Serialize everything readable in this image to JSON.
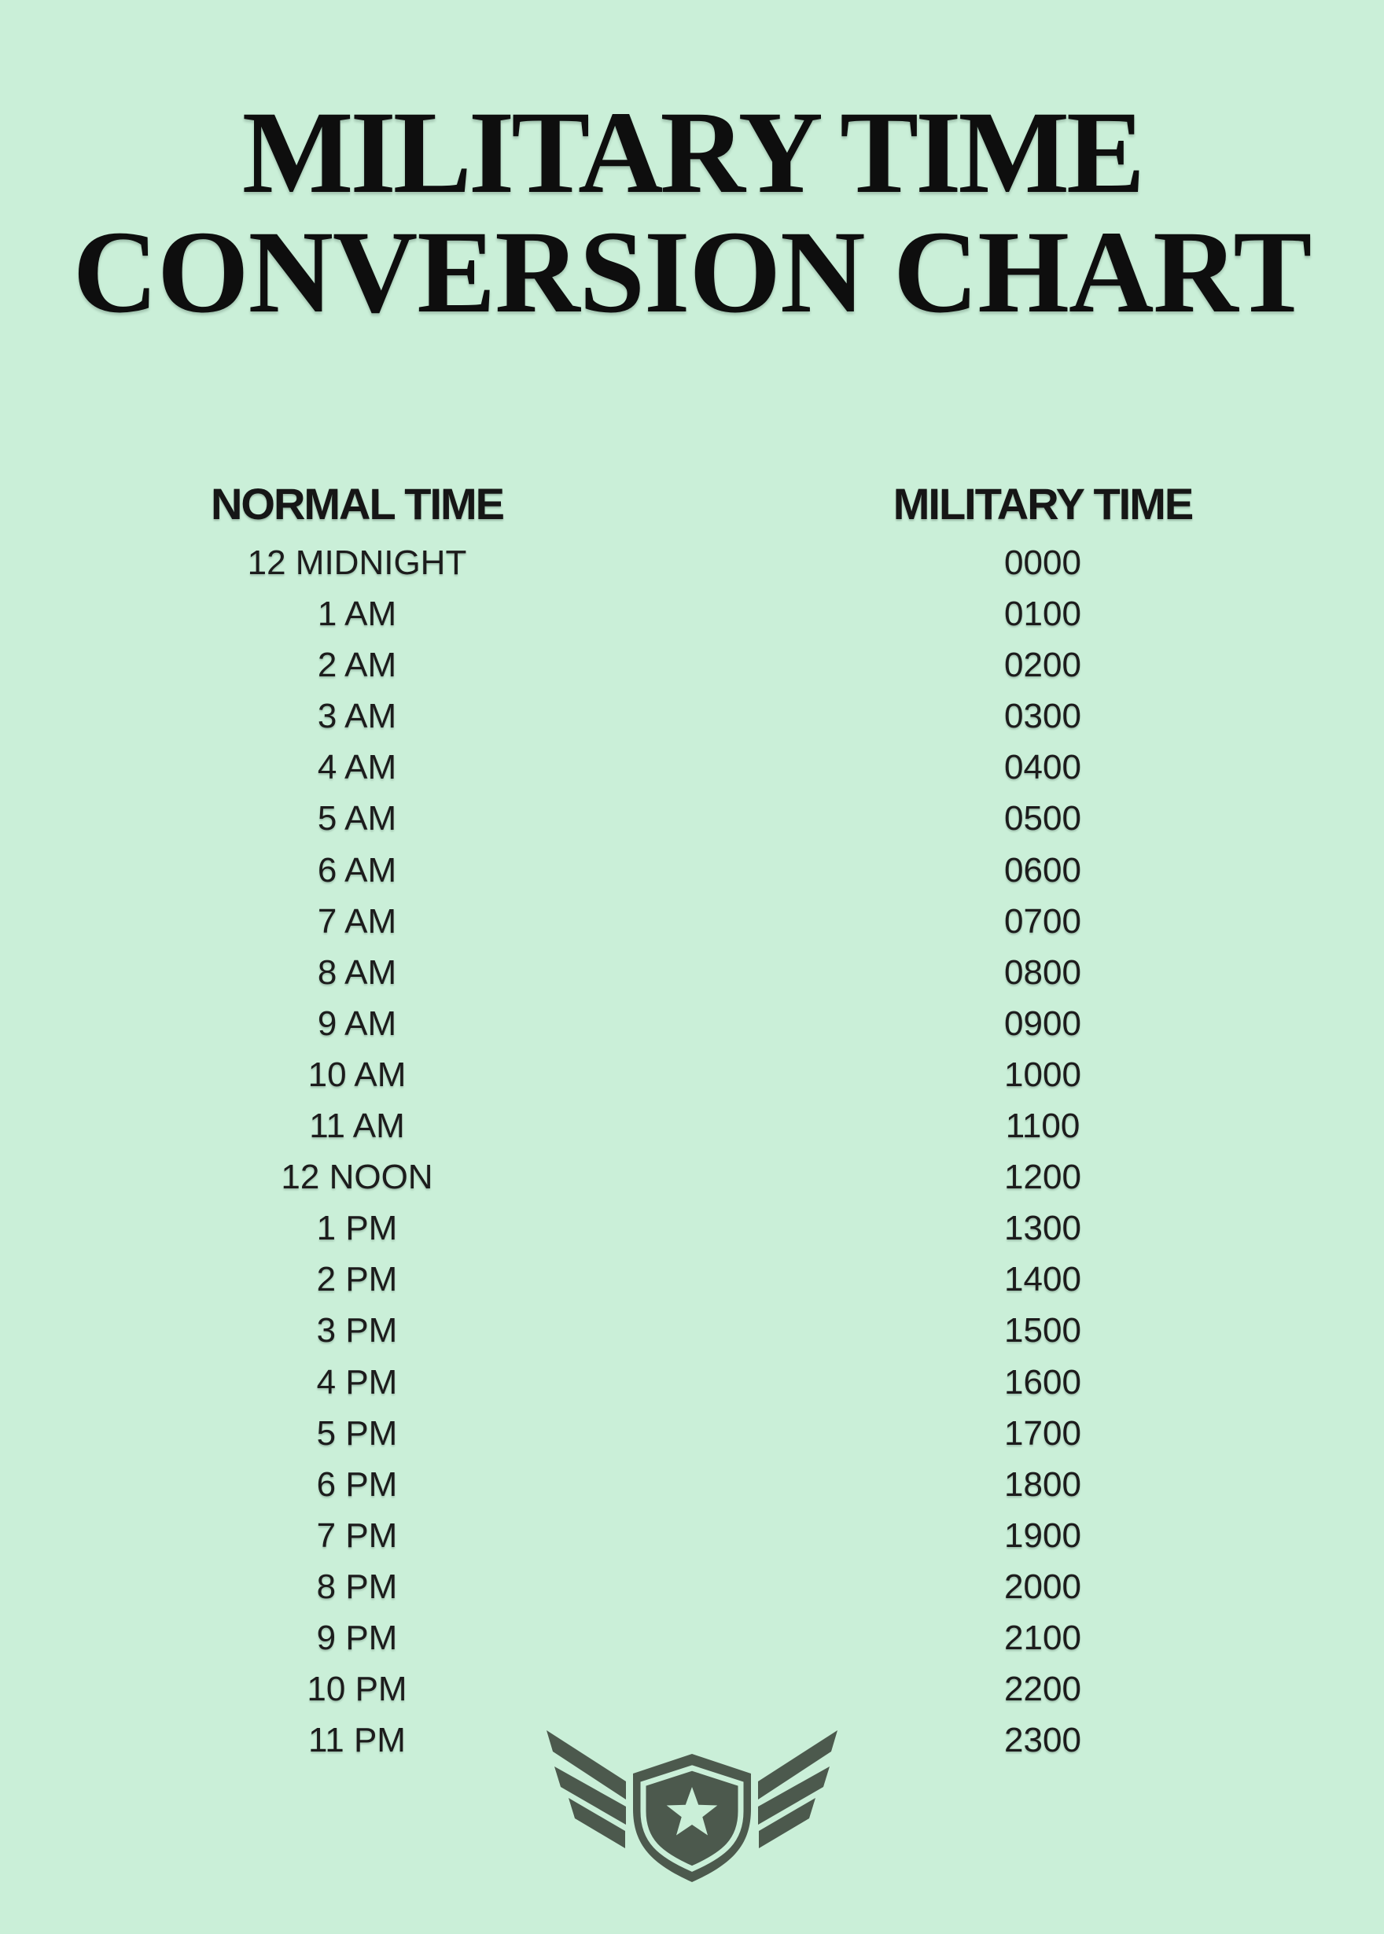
{
  "page": {
    "background_color": "#caefd8",
    "title_color": "#0e0e0e",
    "text_color": "#1c1c1c",
    "badge_color": "#4c594d"
  },
  "title": {
    "line1": "MILITARY TIME",
    "line2": "CONVERSION CHART"
  },
  "table": {
    "headers": {
      "normal": "NORMAL TIME",
      "military": "MILITARY TIME"
    },
    "rows": [
      {
        "normal": "12 MIDNIGHT",
        "military": "0000"
      },
      {
        "normal": "1 AM",
        "military": "0100"
      },
      {
        "normal": "2 AM",
        "military": "0200"
      },
      {
        "normal": "3 AM",
        "military": "0300"
      },
      {
        "normal": "4 AM",
        "military": "0400"
      },
      {
        "normal": "5 AM",
        "military": "0500"
      },
      {
        "normal": "6 AM",
        "military": "0600"
      },
      {
        "normal": "7 AM",
        "military": "0700"
      },
      {
        "normal": "8 AM",
        "military": "0800"
      },
      {
        "normal": "9 AM",
        "military": "0900"
      },
      {
        "normal": "10 AM",
        "military": "1000"
      },
      {
        "normal": "11 AM",
        "military": "1100"
      },
      {
        "normal": "12 NOON",
        "military": "1200"
      },
      {
        "normal": "1 PM",
        "military": "1300"
      },
      {
        "normal": "2 PM",
        "military": "1400"
      },
      {
        "normal": "3 PM",
        "military": "1500"
      },
      {
        "normal": "4 PM",
        "military": "1600"
      },
      {
        "normal": "5 PM",
        "military": "1700"
      },
      {
        "normal": "6 PM",
        "military": "1800"
      },
      {
        "normal": "7 PM",
        "military": "1900"
      },
      {
        "normal": "8 PM",
        "military": "2000"
      },
      {
        "normal": "9 PM",
        "military": "2100"
      },
      {
        "normal": "10 PM",
        "military": "2200"
      },
      {
        "normal": "11 PM",
        "military": "2300"
      }
    ]
  },
  "logo": {
    "icon": "winged-shield-star-badge"
  }
}
